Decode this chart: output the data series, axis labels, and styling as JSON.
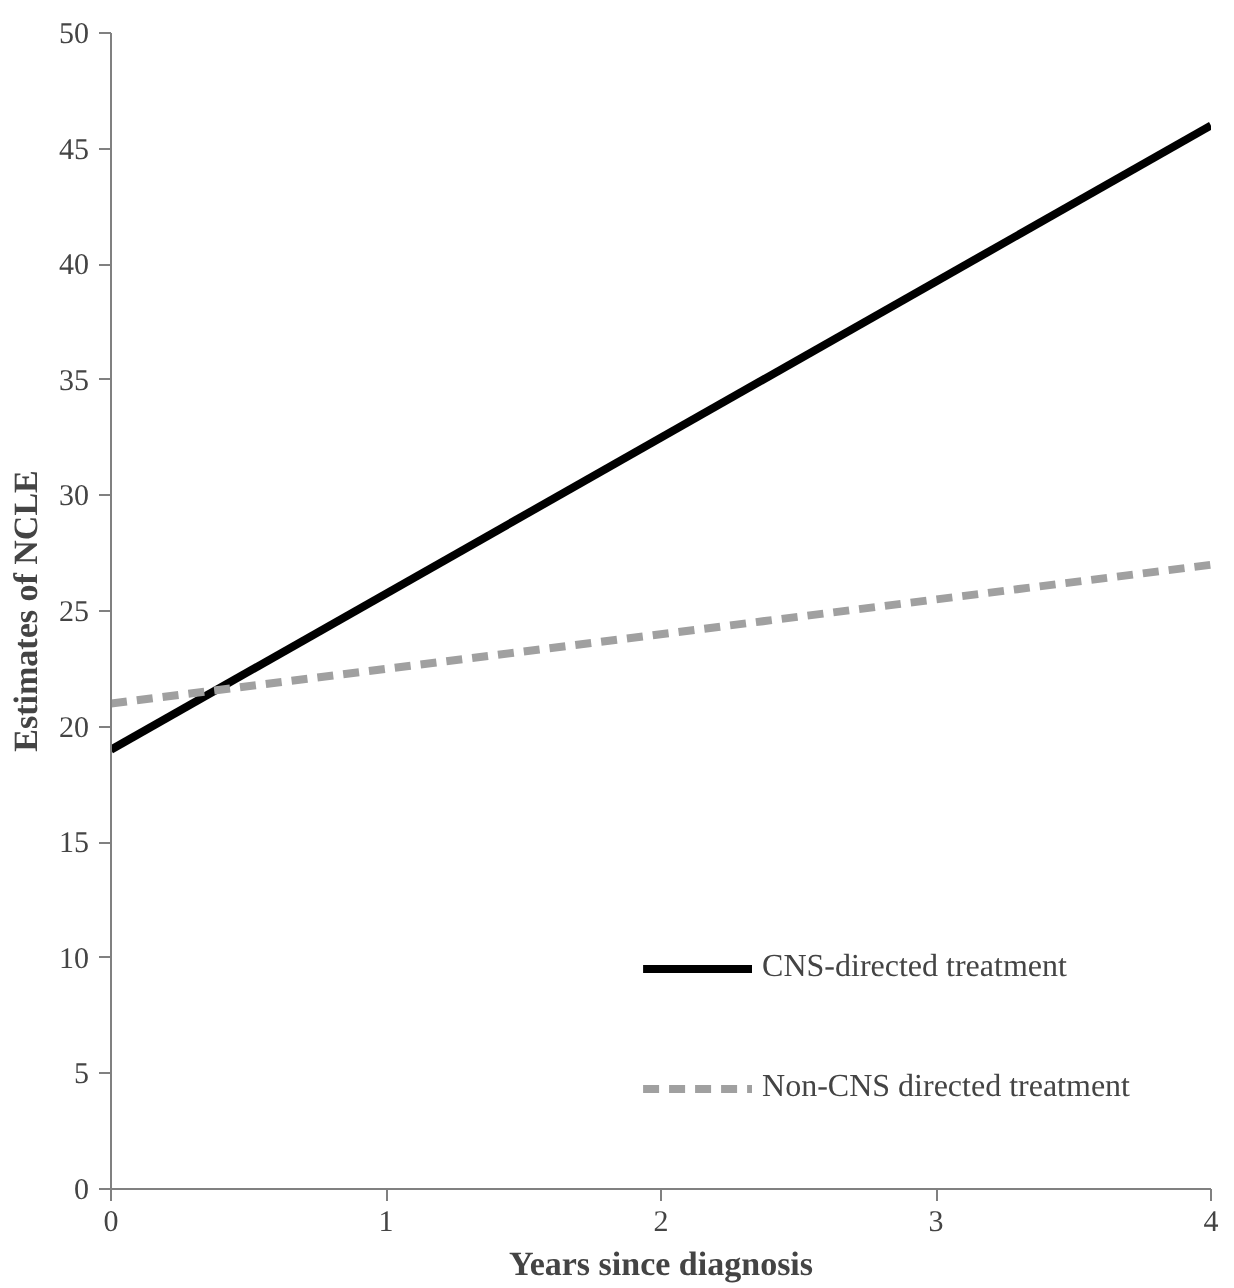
{
  "chart_data": {
    "type": "line",
    "xlabel": "Years since diagnosis",
    "ylabel": "Estimates of NCLE",
    "x": [
      0,
      4
    ],
    "series": [
      {
        "name": "CNS-directed treatment",
        "color": "#000000",
        "values": [
          19,
          46
        ],
        "line_style": "solid"
      },
      {
        "name": "Non-CNS directed treatment",
        "color": "#a0a0a0",
        "values": [
          21,
          27
        ],
        "line_style": "dashed"
      }
    ],
    "xlim": [
      0,
      4
    ],
    "xticks": [
      0,
      1,
      2,
      3,
      4
    ],
    "ylim": [
      0,
      50
    ],
    "yticks": [
      0,
      5,
      10,
      15,
      20,
      25,
      30,
      35,
      40,
      45,
      50
    ],
    "grid": false,
    "legend": "bottom right",
    "marker": "none"
  }
}
